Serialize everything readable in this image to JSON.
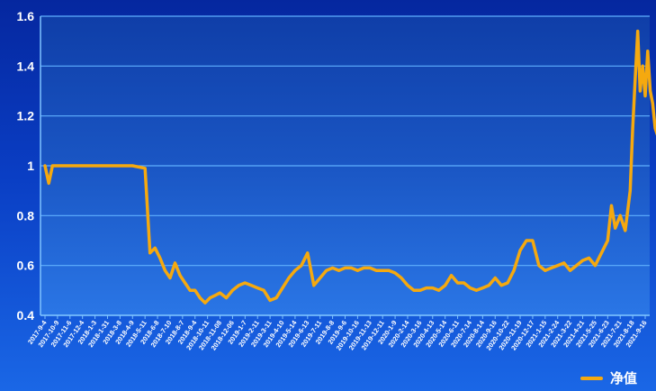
{
  "chart_data": {
    "type": "line",
    "title": "",
    "xlabel": "",
    "ylabel": "",
    "ylim": [
      0.4,
      1.6
    ],
    "y_ticks": [
      "0.4",
      "0.6",
      "0.8",
      "1",
      "1.2",
      "1.4",
      "1.6"
    ],
    "grid": true,
    "legend_position": "bottom-right",
    "x_tick_labels": [
      "2017-9-4",
      "2017-10-9",
      "2017-11-6",
      "2017-12-4",
      "2018-1-3",
      "2018-1-31",
      "2018-3-8",
      "2018-4-9",
      "2018-5-11",
      "2018-6-8",
      "2018-7-10",
      "2018-8-7",
      "2018-9-4",
      "2018-10-11",
      "2018-11-08",
      "2018-12-06",
      "2019-1-7",
      "2019-2-11",
      "2019-3-11",
      "2019-4-10",
      "2019-5-14",
      "2019-6-13",
      "2019-7-11",
      "2019-8-8",
      "2019-9-6",
      "2019-10-16",
      "2019-11-13",
      "2019-12-11",
      "2020-1-9",
      "2020-2-14",
      "2020-3-16",
      "2020-4-13",
      "2020-5-14",
      "2020-6-11",
      "2020-7-14",
      "2020-8-14",
      "2020-9-16",
      "2020-10-22",
      "2020-11-19",
      "2020-12-17",
      "2021-1-15",
      "2021-2-24",
      "2021-3-22",
      "2021-4-21",
      "2021-5-25",
      "2021-6-23",
      "2021-7-21",
      "2021-8-18",
      "2021-9-16"
    ],
    "series": [
      {
        "name": "净值",
        "color": "#f5a90f",
        "x": [
          0,
          0.3,
          0.6,
          1,
          1.3,
          2,
          3,
          4,
          5,
          6,
          7,
          8,
          8.4,
          8.8,
          9.2,
          9.6,
          10,
          10.4,
          10.8,
          11.2,
          11.6,
          12,
          12.4,
          12.8,
          13.2,
          13.6,
          14,
          14.5,
          15,
          15.5,
          16,
          16.5,
          17,
          17.5,
          18,
          18.5,
          19,
          19.5,
          20,
          20.5,
          21,
          21.5,
          22,
          22.5,
          23,
          23.5,
          24,
          24.5,
          25,
          25.5,
          26,
          26.5,
          27,
          27.5,
          28,
          28.5,
          29,
          29.5,
          30,
          30.5,
          31,
          31.5,
          32,
          32.5,
          33,
          33.5,
          34,
          34.5,
          35,
          35.5,
          36,
          36.5,
          37,
          37.5,
          38,
          38.5,
          39,
          39.5,
          40,
          40.5,
          41,
          41.5,
          42,
          42.5,
          43,
          43.5,
          44,
          44.5,
          45,
          45.3,
          45.6,
          46,
          46.4,
          46.8,
          47,
          47.2,
          47.4,
          47.6,
          47.8,
          48,
          48.2,
          48.4,
          48.6,
          48.8,
          49
        ],
        "values": [
          1.0,
          0.93,
          1.0,
          1.0,
          1.0,
          1.0,
          1.0,
          1.0,
          1.0,
          1.0,
          1.0,
          0.99,
          0.65,
          0.67,
          0.63,
          0.58,
          0.55,
          0.61,
          0.56,
          0.53,
          0.5,
          0.5,
          0.47,
          0.45,
          0.47,
          0.48,
          0.49,
          0.47,
          0.5,
          0.52,
          0.53,
          0.52,
          0.51,
          0.5,
          0.46,
          0.47,
          0.51,
          0.55,
          0.58,
          0.6,
          0.65,
          0.52,
          0.55,
          0.58,
          0.59,
          0.58,
          0.59,
          0.59,
          0.58,
          0.59,
          0.59,
          0.58,
          0.58,
          0.58,
          0.57,
          0.55,
          0.52,
          0.5,
          0.5,
          0.51,
          0.51,
          0.5,
          0.52,
          0.56,
          0.53,
          0.53,
          0.51,
          0.5,
          0.51,
          0.52,
          0.55,
          0.52,
          0.53,
          0.58,
          0.66,
          0.7,
          0.7,
          0.6,
          0.58,
          0.59,
          0.6,
          0.61,
          0.58,
          0.6,
          0.62,
          0.63,
          0.6,
          0.65,
          0.7,
          0.84,
          0.75,
          0.8,
          0.74,
          0.9,
          1.15,
          1.35,
          1.54,
          1.3,
          1.4,
          1.28,
          1.46,
          1.3,
          1.25,
          1.15,
          1.12
        ]
      }
    ]
  }
}
